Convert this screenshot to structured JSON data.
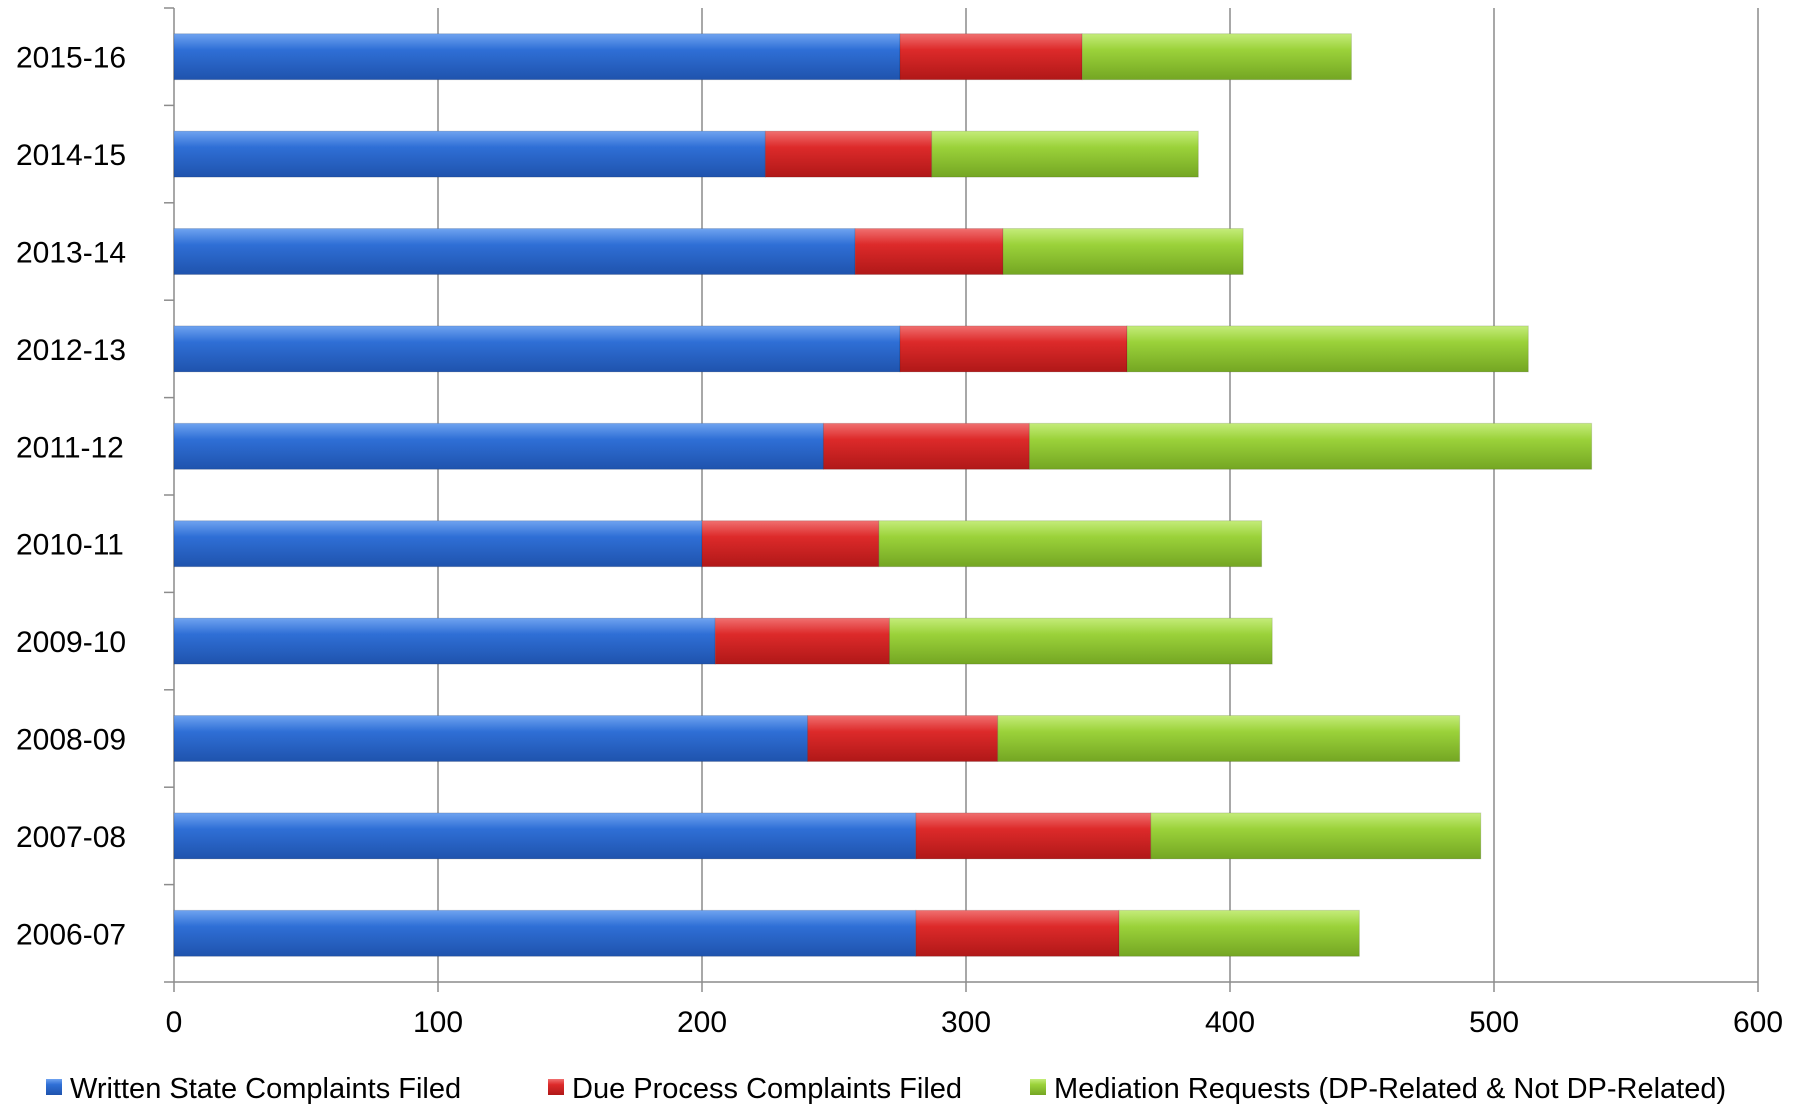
{
  "chart_data": {
    "type": "bar",
    "orientation": "horizontal",
    "stacked": true,
    "title": "",
    "xlabel": "",
    "ylabel": "",
    "categories": [
      "2015-16",
      "2014-15",
      "2013-14",
      "2012-13",
      "2011-12",
      "2010-11",
      "2009-10",
      "2008-09",
      "2007-08",
      "2006-07"
    ],
    "series": [
      {
        "name": "Written State Complaints Filed",
        "color": "#2f6fd6",
        "values": [
          275,
          224,
          258,
          275,
          246,
          200,
          205,
          240,
          281,
          281
        ]
      },
      {
        "name": "Due Process Complaints Filed",
        "color": "#dd2a2a",
        "values": [
          69,
          63,
          56,
          86,
          78,
          67,
          66,
          72,
          89,
          77
        ]
      },
      {
        "name": "Mediation Requests (DP-Related & Not DP-Related)",
        "color": "#9bd23a",
        "values": [
          102,
          101,
          91,
          152,
          213,
          145,
          145,
          175,
          125,
          91
        ]
      }
    ],
    "xlim": [
      0,
      600
    ],
    "xticks": [
      "0",
      "100",
      "200",
      "300",
      "400",
      "500",
      "600"
    ],
    "grid": true,
    "legend": "bottom"
  }
}
